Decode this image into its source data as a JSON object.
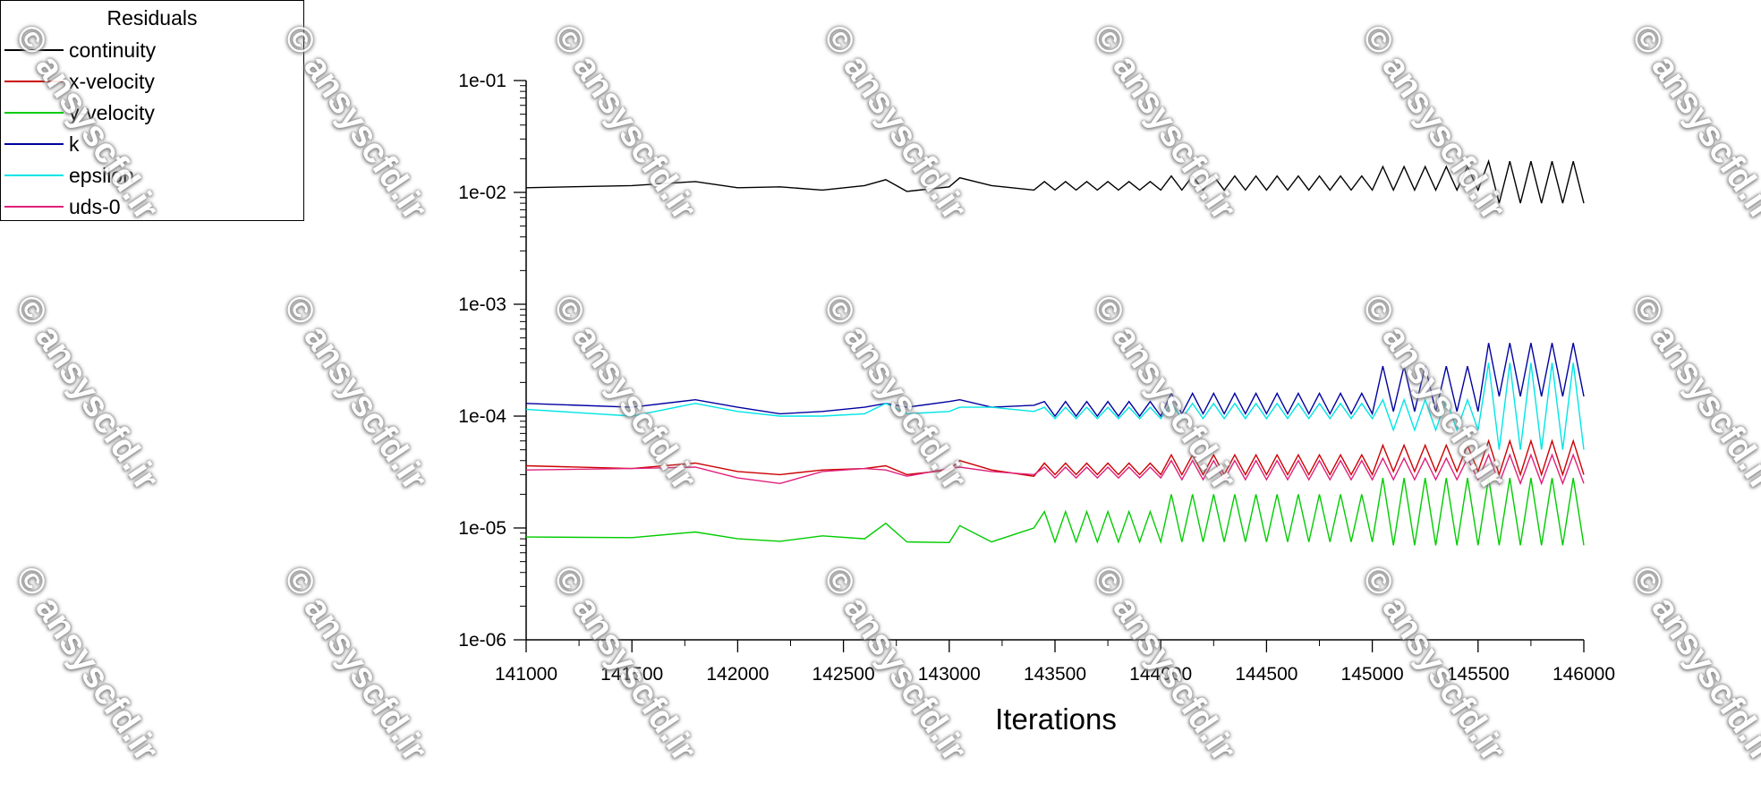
{
  "watermark": "© ansyscfd.ir",
  "chart_data": {
    "type": "line",
    "title": "",
    "xlabel": "Iterations",
    "ylabel": "",
    "yscale": "log",
    "xlim": [
      141000,
      146000
    ],
    "ylim": [
      1e-06,
      0.1
    ],
    "xticks": [
      "141000",
      "141500",
      "142000",
      "142500",
      "143000",
      "143500",
      "144000",
      "144500",
      "145000",
      "145500",
      "146000"
    ],
    "yticks": [
      "1e-01",
      "1e-02",
      "1e-03",
      "1e-04",
      "1e-05",
      "1e-06"
    ],
    "legend": {
      "title": "Residuals",
      "placement": "top-left"
    },
    "x": [
      141000,
      141500,
      141800,
      142000,
      142200,
      142400,
      142600,
      142700,
      142800,
      143000,
      143050,
      143200,
      143400,
      143450,
      143500,
      143550,
      143600,
      143650,
      143700,
      143750,
      143800,
      143850,
      143900,
      143950,
      144000,
      144050,
      144100,
      144150,
      144200,
      144250,
      144300,
      144350,
      144400,
      144450,
      144500,
      144550,
      144600,
      144650,
      144700,
      144750,
      144800,
      144850,
      144900,
      144950,
      145000,
      145050,
      145100,
      145150,
      145200,
      145250,
      145300,
      145350,
      145400,
      145450,
      145500,
      145550,
      145600,
      145650,
      145700,
      145750,
      145800,
      145850,
      145900,
      145950,
      146000
    ],
    "series": [
      {
        "name": "continuity",
        "color": "#000000",
        "values": [
          0.011,
          0.0115,
          0.0125,
          0.011,
          0.0112,
          0.0105,
          0.0115,
          0.013,
          0.0102,
          0.0112,
          0.0135,
          0.0115,
          0.0105,
          0.0125,
          0.0105,
          0.0125,
          0.0105,
          0.0125,
          0.0105,
          0.0125,
          0.0105,
          0.0125,
          0.0105,
          0.0125,
          0.0105,
          0.014,
          0.0105,
          0.014,
          0.0105,
          0.014,
          0.0105,
          0.014,
          0.0105,
          0.014,
          0.0105,
          0.014,
          0.0105,
          0.014,
          0.0105,
          0.014,
          0.0105,
          0.014,
          0.0105,
          0.014,
          0.0105,
          0.017,
          0.0105,
          0.017,
          0.0105,
          0.017,
          0.0105,
          0.017,
          0.0105,
          0.017,
          0.0105,
          0.019,
          0.008,
          0.019,
          0.008,
          0.019,
          0.008,
          0.019,
          0.008,
          0.019,
          0.008
        ]
      },
      {
        "name": "x-velocity",
        "color": "#cc0000",
        "values": [
          3.6e-05,
          3.4e-05,
          3.8e-05,
          3.2e-05,
          3e-05,
          3.3e-05,
          3.4e-05,
          3.6e-05,
          3e-05,
          3.3e-05,
          4e-05,
          3.3e-05,
          2.9e-05,
          3.8e-05,
          3e-05,
          3.8e-05,
          3e-05,
          3.8e-05,
          3e-05,
          3.8e-05,
          3e-05,
          3.8e-05,
          3e-05,
          3.8e-05,
          3e-05,
          4.5e-05,
          3e-05,
          4.5e-05,
          3e-05,
          4.5e-05,
          3e-05,
          4.5e-05,
          3e-05,
          4.5e-05,
          3e-05,
          4.5e-05,
          3e-05,
          4.5e-05,
          3e-05,
          4.5e-05,
          3e-05,
          4.5e-05,
          3e-05,
          4.5e-05,
          3e-05,
          5.5e-05,
          3.2e-05,
          5.5e-05,
          3.2e-05,
          5.5e-05,
          3.2e-05,
          5.5e-05,
          3.2e-05,
          5.5e-05,
          3.2e-05,
          6e-05,
          3e-05,
          6e-05,
          3e-05,
          6e-05,
          3e-05,
          6e-05,
          3e-05,
          6e-05,
          3e-05
        ]
      },
      {
        "name": "y-velocity",
        "color": "#00cc00",
        "values": [
          8.3e-06,
          8.2e-06,
          9.2e-06,
          8e-06,
          7.6e-06,
          8.5e-06,
          8e-06,
          1.1e-05,
          7.5e-06,
          7.4e-06,
          1.05e-05,
          7.5e-06,
          1e-05,
          1.4e-05,
          7.5e-06,
          1.4e-05,
          7.5e-06,
          1.4e-05,
          7.5e-06,
          1.4e-05,
          7.5e-06,
          1.4e-05,
          7.5e-06,
          1.4e-05,
          7.5e-06,
          2e-05,
          7.5e-06,
          2e-05,
          7.5e-06,
          2e-05,
          7.5e-06,
          2e-05,
          7.5e-06,
          2e-05,
          7.5e-06,
          2e-05,
          7.5e-06,
          2e-05,
          7.5e-06,
          2e-05,
          7.5e-06,
          2e-05,
          7.5e-06,
          2e-05,
          7.5e-06,
          2.8e-05,
          7e-06,
          2.8e-05,
          7e-06,
          2.8e-05,
          7e-06,
          2.8e-05,
          7e-06,
          2.8e-05,
          7e-06,
          2.8e-05,
          7e-06,
          2.8e-05,
          7e-06,
          2.8e-05,
          7e-06,
          2.8e-05,
          7e-06,
          2.8e-05,
          7e-06
        ]
      },
      {
        "name": "k",
        "color": "#0000a0",
        "values": [
          0.00013,
          0.00012,
          0.00014,
          0.00012,
          0.000105,
          0.00011,
          0.00012,
          0.00013,
          0.00012,
          0.000135,
          0.00014,
          0.00012,
          0.000125,
          0.000135,
          0.0001,
          0.000135,
          0.0001,
          0.000135,
          0.0001,
          0.000135,
          0.0001,
          0.000135,
          0.0001,
          0.000135,
          0.0001,
          0.00016,
          0.000105,
          0.00016,
          0.000105,
          0.00016,
          0.000105,
          0.00016,
          0.000105,
          0.00016,
          0.000105,
          0.00016,
          0.000105,
          0.00016,
          0.000105,
          0.00016,
          0.000105,
          0.00016,
          0.000105,
          0.00016,
          0.000105,
          0.00028,
          0.00011,
          0.00028,
          0.00011,
          0.00028,
          0.00011,
          0.00028,
          0.00011,
          0.00028,
          0.00011,
          0.00045,
          0.00015,
          0.00045,
          0.00015,
          0.00045,
          0.00015,
          0.00045,
          0.00015,
          0.00045,
          0.00015
        ]
      },
      {
        "name": "epsilon",
        "color": "#00e5e5",
        "values": [
          0.000115,
          0.0001,
          0.00013,
          0.00011,
          0.0001,
          0.0001,
          0.000105,
          0.00013,
          0.000105,
          0.00011,
          0.00012,
          0.00012,
          0.00011,
          0.00012,
          9.5e-05,
          0.00012,
          9.5e-05,
          0.00012,
          9.5e-05,
          0.00012,
          9.5e-05,
          0.00012,
          9.5e-05,
          0.00012,
          9.5e-05,
          0.00013,
          9.5e-05,
          0.00013,
          9.5e-05,
          0.00013,
          9.5e-05,
          0.00013,
          9.5e-05,
          0.00013,
          9.5e-05,
          0.00013,
          9.5e-05,
          0.00013,
          9.5e-05,
          0.00013,
          9.5e-05,
          0.00013,
          9.5e-05,
          0.00013,
          9.5e-05,
          0.00014,
          7.5e-05,
          0.00014,
          7.5e-05,
          0.00014,
          7.5e-05,
          0.00014,
          7.5e-05,
          0.00014,
          7.5e-05,
          0.0003,
          5e-05,
          0.0003,
          5e-05,
          0.0003,
          5e-05,
          0.0003,
          5e-05,
          0.0003,
          5e-05
        ]
      },
      {
        "name": "uds-0",
        "color": "#e0207a",
        "values": [
          3.3e-05,
          3.4e-05,
          3.5e-05,
          2.8e-05,
          2.5e-05,
          3.2e-05,
          3.4e-05,
          3.3e-05,
          2.9e-05,
          3.4e-05,
          3.5e-05,
          3.2e-05,
          3e-05,
          3.5e-05,
          2.8e-05,
          3.5e-05,
          2.8e-05,
          3.5e-05,
          2.8e-05,
          3.5e-05,
          2.8e-05,
          3.5e-05,
          2.8e-05,
          3.5e-05,
          2.8e-05,
          4e-05,
          2.7e-05,
          4e-05,
          2.7e-05,
          4e-05,
          2.7e-05,
          4e-05,
          2.7e-05,
          4e-05,
          2.7e-05,
          4e-05,
          2.7e-05,
          4e-05,
          2.7e-05,
          4e-05,
          2.7e-05,
          4e-05,
          2.7e-05,
          4e-05,
          2.7e-05,
          4.2e-05,
          2.7e-05,
          4.2e-05,
          2.7e-05,
          4.2e-05,
          2.7e-05,
          4.2e-05,
          2.7e-05,
          4.2e-05,
          2.7e-05,
          4.5e-05,
          2.5e-05,
          4.5e-05,
          2.5e-05,
          4.5e-05,
          2.5e-05,
          4.5e-05,
          2.5e-05,
          4.5e-05,
          2.5e-05
        ]
      }
    ]
  }
}
